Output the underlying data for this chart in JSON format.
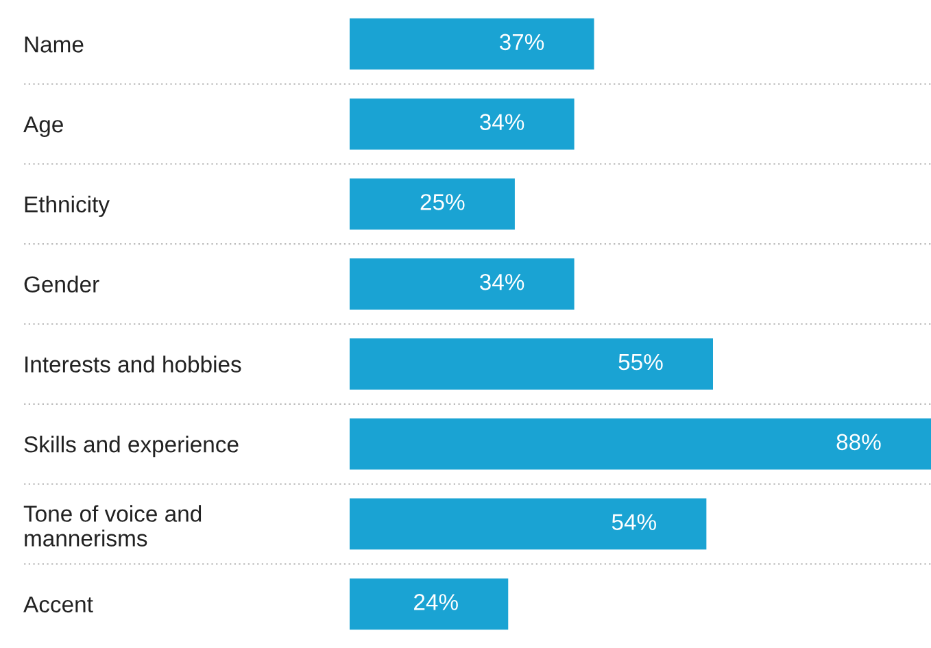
{
  "chart_data": {
    "type": "bar",
    "orientation": "horizontal",
    "categories": [
      "Name",
      "Age",
      "Ethnicity",
      "Gender",
      "Interests and hobbies",
      "Skills and experience",
      "Tone of voice and\nmannerisms",
      "Accent"
    ],
    "values": [
      37,
      34,
      25,
      34,
      55,
      88,
      54,
      24
    ],
    "value_labels": [
      "37%",
      "34%",
      "25%",
      "34%",
      "55%",
      "88%",
      "54%",
      "24%"
    ],
    "color": "#1aa3d3",
    "xlim": [
      0,
      88
    ],
    "grid": "y",
    "tick_labels": "y"
  }
}
